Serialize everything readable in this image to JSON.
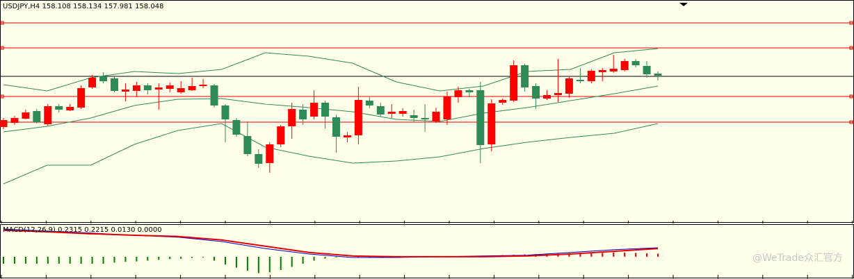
{
  "chart_data": [
    {
      "type": "candlestick",
      "title": "USDJPY,H4  158.108 158.134 157.981 158.048",
      "ylim": [
        155.95,
        159.1
      ],
      "up_color": "#ff0000",
      "down_color": "#2e8b57",
      "open": [
        157.32,
        157.38,
        157.44,
        157.55,
        157.36,
        157.62,
        157.56,
        157.6,
        157.89,
        158.05,
        158.02,
        157.83,
        157.84,
        157.92,
        157.86,
        157.87,
        157.82,
        157.85,
        157.91,
        157.92,
        157.63,
        157.42,
        157.19,
        156.93,
        156.8,
        157.07,
        157.33,
        157.57,
        157.47,
        157.67,
        157.46,
        157.17,
        157.2,
        157.7,
        157.62,
        157.51,
        157.51,
        157.49,
        157.45,
        157.4,
        157.43,
        157.75,
        157.85,
        157.85,
        157.07,
        157.67,
        157.7,
        158.21,
        157.91,
        157.73,
        157.78,
        157.8,
        158.0,
        157.98,
        158.11,
        158.12,
        158.14,
        158.27,
        158.2,
        158.09
      ],
      "high": [
        157.45,
        157.48,
        157.57,
        157.58,
        157.65,
        157.65,
        157.65,
        157.92,
        158.07,
        158.11,
        158.04,
        157.95,
        157.97,
        157.95,
        157.95,
        157.96,
        157.98,
        158.03,
        158.01,
        157.94,
        157.65,
        157.45,
        157.4,
        157.0,
        157.1,
        157.35,
        157.67,
        157.65,
        157.85,
        157.7,
        157.5,
        157.25,
        157.9,
        157.75,
        157.67,
        157.65,
        157.59,
        157.57,
        157.65,
        157.6,
        157.83,
        157.9,
        157.87,
        157.97,
        157.72,
        157.73,
        158.28,
        158.23,
        157.95,
        157.85,
        158.3,
        158.04,
        158.17,
        158.15,
        158.17,
        158.36,
        158.3,
        158.3,
        158.27,
        158.12
      ],
      "low": [
        157.29,
        157.35,
        157.43,
        157.37,
        157.34,
        157.53,
        157.55,
        157.58,
        157.87,
        157.95,
        157.82,
        157.69,
        157.75,
        157.79,
        157.57,
        157.82,
        157.8,
        157.84,
        157.88,
        157.6,
        157.1,
        157.18,
        156.9,
        156.73,
        156.66,
        157.03,
        157.15,
        157.35,
        157.43,
        157.3,
        156.95,
        157.1,
        157.07,
        157.59,
        157.47,
        157.45,
        157.47,
        157.39,
        157.25,
        157.38,
        157.35,
        157.67,
        157.75,
        156.8,
        156.97,
        157.64,
        157.68,
        157.83,
        157.58,
        157.71,
        157.68,
        157.74,
        157.95,
        157.95,
        157.98,
        158.1,
        158.12,
        158.18,
        158.03,
        157.99
      ],
      "close": [
        157.42,
        157.45,
        157.53,
        157.39,
        157.62,
        157.57,
        157.61,
        157.88,
        158.03,
        157.98,
        157.84,
        157.86,
        157.92,
        157.85,
        157.89,
        157.92,
        157.88,
        157.91,
        157.93,
        157.63,
        157.43,
        157.21,
        156.93,
        156.79,
        157.07,
        157.33,
        157.58,
        157.43,
        157.67,
        157.47,
        157.18,
        157.2,
        157.71,
        157.63,
        157.5,
        157.54,
        157.55,
        157.45,
        157.43,
        157.54,
        157.76,
        157.85,
        157.82,
        157.06,
        157.66,
        157.71,
        158.21,
        157.89,
        157.73,
        157.78,
        157.81,
        158.02,
        157.98,
        158.13,
        158.14,
        158.16,
        158.27,
        158.21,
        158.08,
        158.06
      ],
      "bands": [
        {
          "color": "#2e8b57",
          "values": [
            157.93,
            157.84,
            158.03,
            158.12,
            158.09,
            158.15,
            158.39,
            158.34,
            158.24,
            157.97,
            157.84,
            157.91,
            158.12,
            158.15,
            158.39,
            158.45
          ]
        },
        {
          "color": "#2e8b57",
          "values": [
            157.25,
            157.33,
            157.45,
            157.63,
            157.72,
            157.73,
            157.65,
            157.6,
            157.54,
            157.43,
            157.4,
            157.52,
            157.6,
            157.7,
            157.8,
            157.91
          ]
        },
        {
          "color": "#2e8b57",
          "values": [
            156.5,
            156.77,
            156.77,
            157.07,
            157.27,
            157.37,
            157.03,
            156.9,
            156.8,
            156.83,
            156.89,
            157.01,
            157.1,
            157.17,
            157.23,
            157.37
          ]
        }
      ],
      "levels": [
        158.82,
        158.46,
        157.76,
        157.39
      ],
      "level_color": "#e00000",
      "current_price": 158.05,
      "current_color": "#000000"
    },
    {
      "type": "macd",
      "title": "MACD(12,26,9) 0.2315 0.2215 0.0130 0.0000",
      "ylim": [
        -0.5,
        0.8
      ],
      "up_color": "#ff0000",
      "down_color": "#008000",
      "histogram": [
        -0.18,
        -0.18,
        -0.18,
        -0.18,
        -0.18,
        -0.18,
        -0.18,
        -0.18,
        -0.18,
        -0.18,
        -0.15,
        -0.13,
        -0.12,
        -0.1,
        -0.08,
        -0.06,
        -0.05,
        -0.03,
        -0.02,
        -0.1,
        -0.2,
        -0.28,
        -0.36,
        -0.42,
        -0.4,
        -0.34,
        -0.26,
        -0.18,
        -0.1,
        -0.05,
        -0.02,
        0,
        0,
        0,
        0,
        0,
        0,
        0,
        0,
        0,
        0,
        0,
        0,
        0.02,
        0.03,
        0.04,
        0.05,
        0.06,
        0.07,
        0.08,
        0.08,
        0.09,
        0.1,
        0.1,
        0.1,
        0.11,
        0.11,
        0.1,
        0.09,
        0.08
      ],
      "series": [
        {
          "color": "#0000c0",
          "values": [
            0.71,
            0.66,
            0.61,
            0.55,
            0.5,
            0.39,
            0.21,
            0.07,
            -0.02,
            -0.02,
            0,
            0.02,
            0.04,
            0.11,
            0.18,
            0.23
          ]
        },
        {
          "color": "#e00000",
          "values": [
            0.68,
            0.64,
            0.59,
            0.55,
            0.52,
            0.43,
            0.27,
            0.11,
            0.02,
            0,
            0,
            0,
            0.02,
            0.07,
            0.14,
            0.21
          ]
        }
      ]
    }
  ],
  "watermark": "@WeTrade众汇官方"
}
